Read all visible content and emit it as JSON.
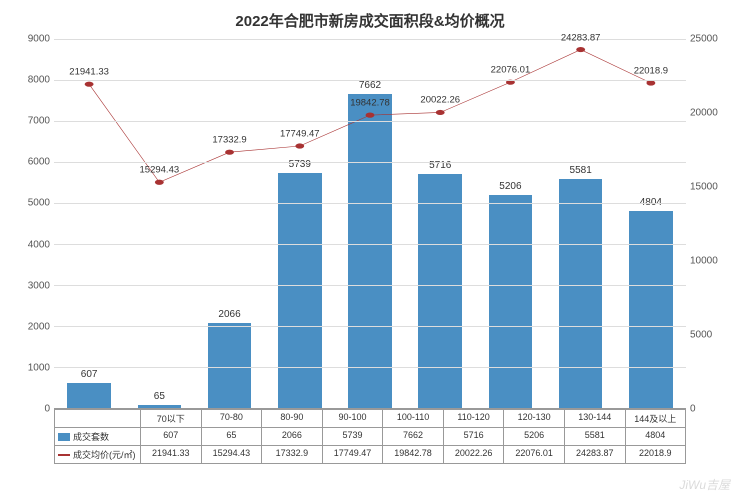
{
  "title": "2022年合肥市新房成交面积段&均价概况",
  "categories": [
    "70以下",
    "70-80",
    "80-90",
    "90-100",
    "100-110",
    "110-120",
    "120-130",
    "130-144",
    "144及以上"
  ],
  "bar_series": {
    "name": "成交套数",
    "values": [
      607,
      65,
      2066,
      5739,
      7662,
      5716,
      5206,
      5581,
      4804
    ],
    "color": "#4a8fc3",
    "ylim": [
      0,
      9000
    ],
    "ytick_step": 1000
  },
  "line_series": {
    "name": "成交均价(元/㎡)",
    "values": [
      21941.33,
      15294.43,
      17332.9,
      17749.47,
      19842.78,
      20022.26,
      22076.01,
      24283.87,
      22018.9
    ],
    "color": "#a83232",
    "ylim": [
      0,
      25000
    ],
    "ytick_step": 5000
  },
  "watermark": "JiWu吉屋"
}
